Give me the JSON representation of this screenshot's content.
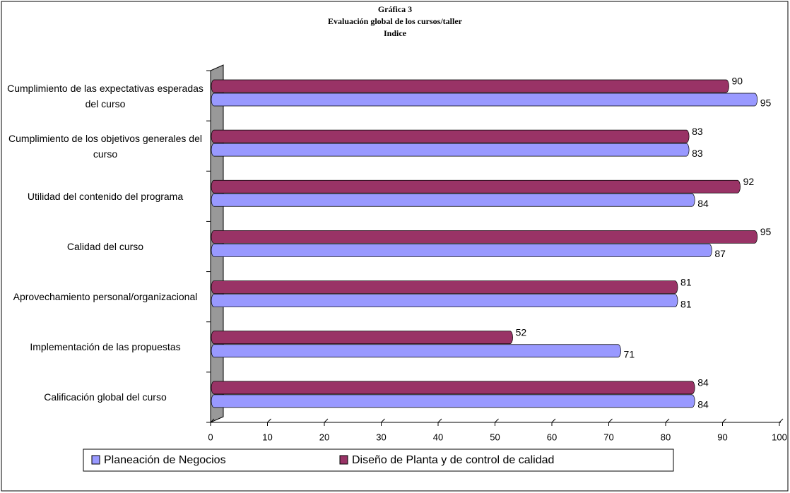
{
  "chart_data": {
    "type": "bar",
    "orientation": "horizontal",
    "title": [
      "Gráfica 3",
      "Evaluación global de los cursos/taller",
      "Indice"
    ],
    "categories": [
      "Cumplimiento de las expectativas esperadas del curso",
      "Cumplimiento de los objetivos generales del curso",
      "Utilidad del contenido del programa",
      "Calidad del curso",
      "Aprovechamiento personal/organizacional",
      "Implementación de las propuestas",
      "Calificación global del curso"
    ],
    "series": [
      {
        "name": "Planeación de Negocios",
        "color": "#9999ff",
        "values": [
          95,
          83,
          84,
          87,
          81,
          71,
          84
        ]
      },
      {
        "name": "Diseño de Planta y de control de calidad",
        "color": "#993366",
        "values": [
          90,
          83,
          92,
          95,
          81,
          52,
          84
        ]
      }
    ],
    "xlim": [
      0,
      100
    ],
    "xticks": [
      0,
      10,
      20,
      30,
      40,
      50,
      60,
      70,
      80,
      90,
      100
    ],
    "legend": "bottom"
  }
}
